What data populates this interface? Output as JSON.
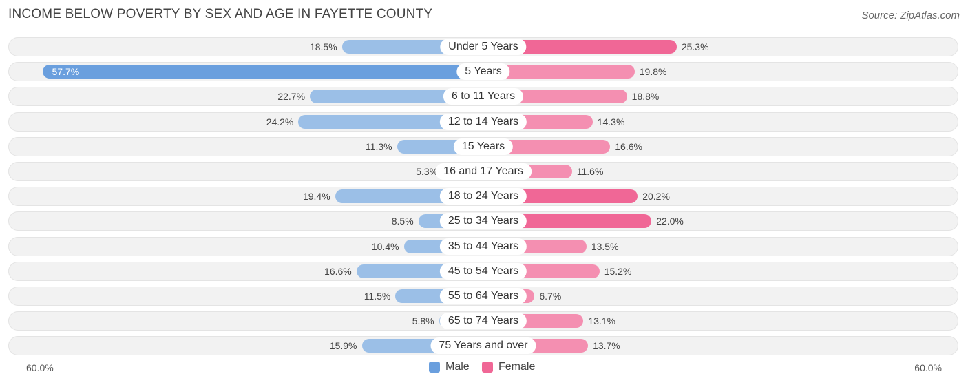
{
  "header": {
    "title": "INCOME BELOW POVERTY BY SEX AND AGE IN FAYETTE COUNTY",
    "source": "Source: ZipAtlas.com"
  },
  "colors": {
    "male": "#9bbfe7",
    "male_strong": "#6a9fde",
    "female": "#f48fb1",
    "female_strong": "#f06796"
  },
  "chart_data": {
    "type": "bar",
    "orientation": "horizontal-diverging",
    "title": "INCOME BELOW POVERTY BY SEX AND AGE IN FAYETTE COUNTY",
    "categories": [
      "Under 5 Years",
      "5 Years",
      "6 to 11 Years",
      "12 to 14 Years",
      "15 Years",
      "16 and 17 Years",
      "18 to 24 Years",
      "25 to 34 Years",
      "35 to 44 Years",
      "45 to 54 Years",
      "55 to 64 Years",
      "65 to 74 Years",
      "75 Years and over"
    ],
    "series": [
      {
        "name": "Male",
        "values": [
          18.5,
          57.7,
          22.7,
          24.2,
          11.3,
          5.3,
          19.4,
          8.5,
          10.4,
          16.6,
          11.5,
          5.8,
          15.9
        ]
      },
      {
        "name": "Female",
        "values": [
          25.3,
          19.8,
          18.8,
          14.3,
          16.6,
          11.6,
          20.2,
          22.0,
          13.5,
          15.2,
          6.7,
          13.1,
          13.7
        ]
      }
    ],
    "value_labels": {
      "male": [
        "18.5%",
        "57.7%",
        "22.7%",
        "24.2%",
        "11.3%",
        "5.3%",
        "19.4%",
        "8.5%",
        "10.4%",
        "16.6%",
        "11.5%",
        "5.8%",
        "15.9%"
      ],
      "female": [
        "25.3%",
        "19.8%",
        "18.8%",
        "14.3%",
        "16.6%",
        "11.6%",
        "20.2%",
        "22.0%",
        "13.5%",
        "15.2%",
        "6.7%",
        "13.1%",
        "13.7%"
      ]
    },
    "xlim": [
      -60,
      60
    ],
    "axis_labels": {
      "left": "60.0%",
      "right": "60.0%"
    },
    "legend": {
      "position": "bottom-center",
      "items": [
        "Male",
        "Female"
      ]
    }
  }
}
